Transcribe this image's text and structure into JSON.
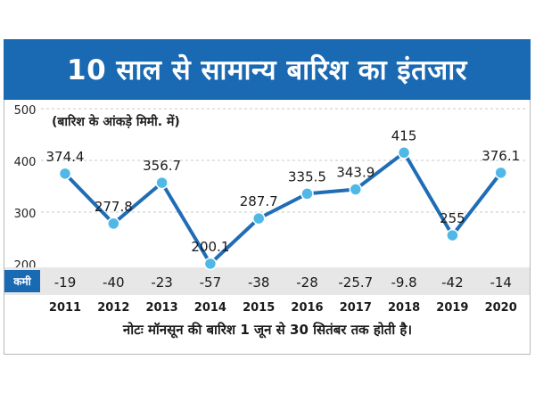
{
  "chart_data": {
    "type": "line",
    "title": "10 साल से सामान्य बारिश का इंतजार",
    "subtitle": "(बारिश के आंकड़े मिमी. में)",
    "categories": [
      "2011",
      "2012",
      "2013",
      "2014",
      "2015",
      "2016",
      "2017",
      "2018",
      "2019",
      "2020"
    ],
    "values": [
      374.4,
      277.8,
      356.7,
      200.1,
      287.7,
      335.5,
      343.9,
      415,
      255,
      376.1
    ],
    "value_labels": [
      "374.4",
      "277.8",
      "356.7",
      "200.1",
      "287.7",
      "335.5",
      "343.9",
      "415",
      "255",
      "376.1"
    ],
    "deficit_label": "कमी",
    "deficit_values": [
      "-19",
      "-40",
      "-23",
      "-57",
      "-38",
      "-28",
      "-25.7",
      "-9.8",
      "-42",
      "-14"
    ],
    "y_ticks": [
      "500",
      "400",
      "300",
      "200"
    ],
    "ylim": [
      200,
      500
    ],
    "grid": true,
    "colors": {
      "title_bg": "#1a69b3",
      "line": "#1f6db6",
      "marker": "#4fb8e6",
      "deficit_band": "#e7e7e7",
      "deficit_label_bg": "#1a69b3"
    }
  },
  "note": "नोटः मॉनसून की बारिश 1 जून से 30 सितंबर तक होती है।"
}
